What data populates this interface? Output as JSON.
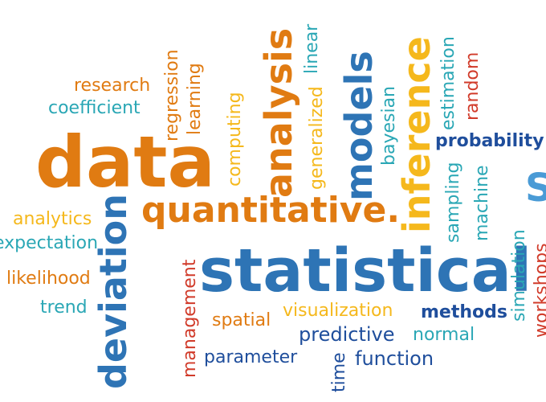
{
  "colors": {
    "orange": "#e07b12",
    "blue": "#2e74b5",
    "teal": "#2aa7b5",
    "yellow": "#f5b81c",
    "red": "#d13b2a",
    "navy": "#1f4e9c",
    "olive": "#9a8a22",
    "sky": "#4a9bd6"
  },
  "words": {
    "data": "data",
    "statistical": "statistical",
    "quantitative": "quantitative.",
    "analysis": "analysis",
    "models": "models",
    "inference": "inference",
    "deviation": "deviation",
    "research": "research",
    "coefficient": "coefficient",
    "regression": "regression",
    "learning": "learning",
    "computing": "computing",
    "generalized": "generalized",
    "linear": "linear",
    "bayesian": "bayesian",
    "estimation": "estimation",
    "random": "random",
    "probability": "probability",
    "sampling": "sampling",
    "machine": "machine",
    "analytics": "analytics",
    "expectation": "expectation",
    "likelihood": "likelihood",
    "trend": "trend",
    "management": "management",
    "spatial": "spatial",
    "visualization": "visualization",
    "methods": "methods",
    "predictive": "predictive",
    "normal": "normal",
    "parameter": "parameter",
    "time": "time",
    "function": "function",
    "simulation": "simulation",
    "workshops": "workshops",
    "edge_glyph": "S"
  }
}
